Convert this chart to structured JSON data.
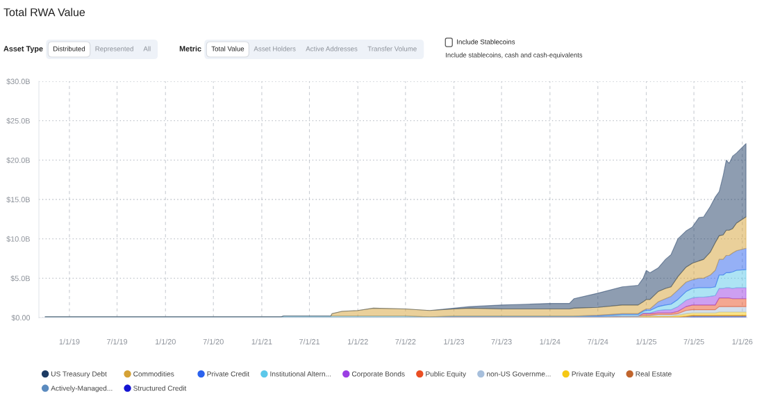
{
  "chart_data": {
    "type": "area",
    "title": "Total RWA Value",
    "annotations": [
      "Asset Type",
      "Distributed",
      "Represented",
      "All",
      "Metric",
      "Total Value",
      "Asset Holders",
      "Active Addresses",
      "Transfer Volume",
      "Include Stablecoins",
      "Include stablecoins, cash and cash-equivalents"
    ],
    "stacked": true,
    "x": [
      "2018-10-01",
      "2019-07-01",
      "2020-07-01",
      "2021-03-15",
      "2021-03-25",
      "2021-09-20",
      "2021-09-25",
      "2021-11-01",
      "2022-01-01",
      "2022-03-01",
      "2022-07-01",
      "2022-10-01",
      "2023-01-01",
      "2023-03-01",
      "2023-07-01",
      "2023-10-01",
      "2024-01-01",
      "2024-03-15",
      "2024-04-01",
      "2024-07-01",
      "2024-10-01",
      "2024-12-01",
      "2024-12-20",
      "2025-01-01",
      "2025-01-15",
      "2025-02-15",
      "2025-03-15",
      "2025-04-05",
      "2025-05-01",
      "2025-06-01",
      "2025-06-25",
      "2025-07-20",
      "2025-08-07",
      "2025-09-01",
      "2025-09-20",
      "2025-10-05",
      "2025-10-20",
      "2025-11-01",
      "2025-11-12",
      "2025-11-25",
      "2025-12-10",
      "2026-01-15"
    ],
    "series": [
      {
        "name": "Structured Credit",
        "color": "#1414d2",
        "values": [
          0,
          0,
          0,
          0,
          0,
          0,
          0,
          0,
          0,
          0,
          0,
          0,
          0,
          0,
          0,
          0,
          0,
          0,
          0,
          0,
          0,
          0,
          0,
          0,
          0,
          0,
          0,
          0,
          0,
          0,
          0.1,
          0.1,
          0.1,
          0.1,
          0.1,
          0.1,
          0.1,
          0.1,
          0.1,
          0.1,
          0.1,
          0.1
        ]
      },
      {
        "name": "Actively-Managed...",
        "color": "#5b8bbf",
        "values": [
          0,
          0,
          0,
          0,
          0,
          0,
          0,
          0,
          0,
          0,
          0,
          0,
          0,
          0,
          0,
          0,
          0,
          0,
          0,
          0,
          0,
          0,
          0,
          0,
          0,
          0,
          0,
          0,
          0,
          0.1,
          0.1,
          0.1,
          0.1,
          0.1,
          0.1,
          0.1,
          0.1,
          0.1,
          0.1,
          0.1,
          0.1,
          0.1
        ]
      },
      {
        "name": "Real Estate",
        "color": "#c0652d",
        "values": [
          0,
          0,
          0,
          0,
          0,
          0,
          0,
          0,
          0,
          0,
          0,
          0,
          0.1,
          0.1,
          0.1,
          0.1,
          0.1,
          0.1,
          0.1,
          0.1,
          0.1,
          0.1,
          0.1,
          0.1,
          0.1,
          0.1,
          0.1,
          0.1,
          0.1,
          0.1,
          0.1,
          0.1,
          0.1,
          0.1,
          0.1,
          0.1,
          0.1,
          0.1,
          0.1,
          0.1,
          0.1,
          0.1
        ]
      },
      {
        "name": "Private Equity",
        "color": "#f5c816",
        "values": [
          0,
          0,
          0,
          0,
          0,
          0,
          0,
          0,
          0,
          0,
          0,
          0,
          0,
          0,
          0,
          0,
          0,
          0,
          0,
          0,
          0,
          0,
          0.1,
          0.1,
          0.1,
          0.1,
          0.1,
          0.1,
          0.2,
          0.3,
          0.3,
          0.3,
          0.3,
          0.3,
          0.3,
          0.4,
          0.4,
          0.4,
          0.4,
          0.4,
          0.4,
          0.4
        ]
      },
      {
        "name": "non-US Governme...",
        "color": "#a7bfdc",
        "values": [
          0,
          0,
          0,
          0,
          0,
          0,
          0,
          0,
          0,
          0,
          0,
          0,
          0,
          0,
          0,
          0,
          0,
          0,
          0,
          0,
          0.1,
          0.1,
          0.1,
          0.1,
          0.1,
          0.2,
          0.2,
          0.2,
          0.2,
          0.4,
          0.4,
          0.4,
          0.4,
          0.4,
          0.4,
          0.7,
          0.7,
          0.7,
          0.7,
          0.7,
          0.7,
          0.7
        ]
      },
      {
        "name": "Public Equity",
        "color": "#ea4f23",
        "values": [
          0,
          0,
          0,
          0,
          0,
          0,
          0,
          0,
          0,
          0,
          0,
          0,
          0,
          0,
          0,
          0,
          0,
          0,
          0,
          0,
          0,
          0,
          0.2,
          0.2,
          0.2,
          0.2,
          0.2,
          0.2,
          0.3,
          0.5,
          0.6,
          0.6,
          0.6,
          0.6,
          0.6,
          1.1,
          1.1,
          1.1,
          1.1,
          1.0,
          1.0,
          1.0
        ]
      },
      {
        "name": "Corporate Bonds",
        "color": "#9b3fe3",
        "values": [
          0,
          0,
          0,
          0,
          0,
          0,
          0,
          0,
          0,
          0,
          0,
          0,
          0,
          0,
          0,
          0,
          0,
          0,
          0,
          0,
          0,
          0,
          0.1,
          0.1,
          0.1,
          0.3,
          0.4,
          0.4,
          0.6,
          0.8,
          0.9,
          1.0,
          1.0,
          1.1,
          1.2,
          1.2,
          1.2,
          1.3,
          1.3,
          1.3,
          1.4,
          1.4
        ]
      },
      {
        "name": "Institutional Altern...",
        "color": "#5cc8ea",
        "values": [
          0.1,
          0.1,
          0.1,
          0.1,
          0.2,
          0.2,
          0.2,
          0.2,
          0.2,
          0.2,
          0.2,
          0.1,
          0.1,
          0.1,
          0.1,
          0.1,
          0.1,
          0.1,
          0.1,
          0.1,
          0.2,
          0.2,
          0.2,
          0.3,
          0.3,
          0.5,
          0.6,
          0.7,
          0.9,
          1.1,
          1.2,
          1.2,
          1.2,
          1.1,
          1.1,
          1.7,
          1.7,
          1.9,
          1.9,
          2.1,
          2.2,
          2.3
        ]
      },
      {
        "name": "Private Credit",
        "color": "#2b62ee",
        "values": [
          0,
          0,
          0,
          0,
          0,
          0,
          0,
          0,
          0,
          0,
          0,
          0,
          0,
          0,
          0,
          0,
          0,
          0,
          0,
          0.1,
          0.1,
          0.1,
          0.1,
          0.2,
          0.2,
          0.6,
          0.8,
          1.0,
          1.2,
          1.2,
          1.1,
          1.2,
          1.2,
          1.6,
          2.1,
          2.0,
          2.0,
          2.2,
          2.2,
          2.4,
          2.5,
          2.7
        ]
      },
      {
        "name": "Commodities",
        "color": "#d5a236",
        "values": [
          0,
          0,
          0,
          0,
          0,
          0,
          0.3,
          0.6,
          0.7,
          1.0,
          0.9,
          0.8,
          0.9,
          1.0,
          0.9,
          0.9,
          0.9,
          0.9,
          1.0,
          1.0,
          1.1,
          1.1,
          1.1,
          1.2,
          1.2,
          1.3,
          1.3,
          1.2,
          1.7,
          1.9,
          2.1,
          2.2,
          2.4,
          2.9,
          3.5,
          3.0,
          3.1,
          3.2,
          3.2,
          3.1,
          3.5,
          4.0
        ]
      },
      {
        "name": "US Treasury Debt",
        "color": "#1d3b63",
        "values": [
          0,
          0,
          0,
          0,
          0,
          0,
          0,
          0,
          0,
          0,
          0,
          0,
          0.1,
          0.2,
          0.5,
          0.6,
          0.7,
          0.7,
          1.2,
          1.8,
          2.3,
          2.5,
          3.0,
          3.7,
          3.4,
          3.0,
          3.7,
          4.1,
          4.8,
          4.6,
          4.6,
          5.5,
          5.4,
          5.8,
          5.8,
          5.6,
          7.5,
          8.9,
          8.5,
          9.2,
          8.9,
          9.3
        ]
      }
    ],
    "xlim": [
      "2018-09-07",
      "2026-01-20"
    ],
    "xticks": [
      {
        "value": "2019-01-01",
        "label": "1/1/19"
      },
      {
        "value": "2019-07-01",
        "label": "7/1/19"
      },
      {
        "value": "2020-01-01",
        "label": "1/1/20"
      },
      {
        "value": "2020-07-01",
        "label": "7/1/20"
      },
      {
        "value": "2021-01-01",
        "label": "1/1/21"
      },
      {
        "value": "2021-07-01",
        "label": "7/1/21"
      },
      {
        "value": "2022-01-01",
        "label": "1/1/22"
      },
      {
        "value": "2022-07-01",
        "label": "7/1/22"
      },
      {
        "value": "2023-01-01",
        "label": "1/1/23"
      },
      {
        "value": "2023-07-01",
        "label": "7/1/23"
      },
      {
        "value": "2024-01-01",
        "label": "1/1/24"
      },
      {
        "value": "2024-07-01",
        "label": "7/1/24"
      },
      {
        "value": "2025-01-01",
        "label": "1/1/25"
      },
      {
        "value": "2025-07-01",
        "label": "7/1/25"
      },
      {
        "value": "2026-01-01",
        "label": "1/1/26"
      }
    ],
    "ylim": [
      0,
      30
    ],
    "yticks": [
      {
        "value": 0,
        "label": "$0.00"
      },
      {
        "value": 5,
        "label": "$5.0B"
      },
      {
        "value": 10,
        "label": "$10.0B"
      },
      {
        "value": 15,
        "label": "$15.0B"
      },
      {
        "value": 20,
        "label": "$20.0B"
      },
      {
        "value": 25,
        "label": "$25.0B"
      },
      {
        "value": 30,
        "label": "$30.0B"
      }
    ],
    "grid": true,
    "legend": "bottom"
  }
}
